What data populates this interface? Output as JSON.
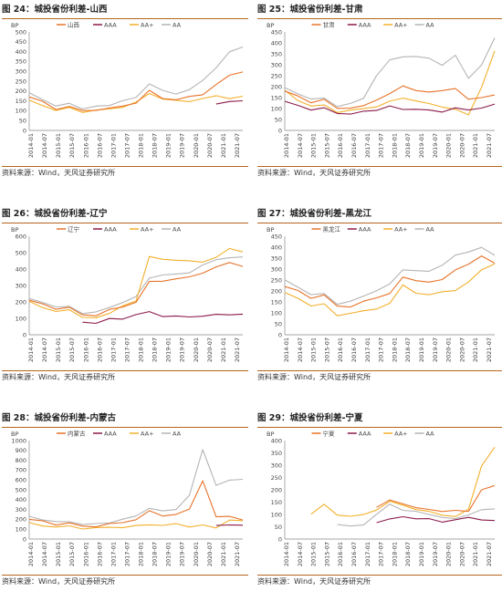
{
  "source_text": "资料来源：Wind，天风证券研究所",
  "x_tick_labels": [
    "2014-01",
    "2014-07",
    "2015-01",
    "2015-07",
    "2016-01",
    "2016-07",
    "2017-01",
    "2017-07",
    "2018-01",
    "2018-07",
    "2019-01",
    "2019-07",
    "2020-01",
    "2020-07",
    "2021-01",
    "2021-07"
  ],
  "colors": {
    "local": "#e8732a",
    "AAA": "#8b1a4a",
    "AA+": "#f2b02c",
    "AA": "#b4b4b4",
    "rule": "#b5651d"
  },
  "chart_data": [
    {
      "type": "line",
      "title": "图 24：城投省份利差-山西",
      "unit": "BP",
      "ylim": [
        0,
        500
      ],
      "yticks": [
        0,
        50,
        100,
        150,
        200,
        250,
        300,
        350,
        400,
        450,
        500
      ],
      "series_names": [
        "山西",
        "AAA",
        "AA+",
        "AA"
      ],
      "x": [
        "2014-01",
        "2014-07",
        "2015-01",
        "2015-07",
        "2016-01",
        "2016-07",
        "2017-01",
        "2017-07",
        "2018-01",
        "2018-07",
        "2019-01",
        "2019-07",
        "2020-01",
        "2020-07",
        "2021-01",
        "2021-07",
        "2021-10"
      ],
      "series": [
        {
          "values": [
            170,
            145,
            110,
            120,
            100,
            105,
            110,
            125,
            140,
            200,
            165,
            155,
            170,
            185,
            230,
            280,
            300
          ]
        },
        {
          "values": [
            null,
            null,
            null,
            null,
            null,
            null,
            null,
            null,
            null,
            null,
            null,
            null,
            null,
            null,
            130,
            150,
            150
          ]
        },
        {
          "values": [
            150,
            130,
            100,
            115,
            95,
            100,
            110,
            120,
            140,
            190,
            160,
            150,
            150,
            160,
            175,
            165,
            170
          ]
        },
        {
          "values": [
            190,
            160,
            120,
            140,
            110,
            120,
            130,
            150,
            165,
            240,
            200,
            185,
            210,
            250,
            320,
            400,
            420
          ]
        }
      ]
    },
    {
      "type": "line",
      "title": "图 25：城投省份利差-甘肃",
      "unit": "BP",
      "ylim": [
        0,
        450
      ],
      "yticks": [
        0,
        50,
        100,
        150,
        200,
        250,
        300,
        350,
        400,
        450
      ],
      "series_names": [
        "甘肃",
        "AAA",
        "AA+",
        "AA"
      ],
      "x": [
        "2014-01",
        "2014-07",
        "2015-01",
        "2015-07",
        "2016-01",
        "2016-07",
        "2017-01",
        "2017-07",
        "2018-01",
        "2018-07",
        "2019-01",
        "2019-07",
        "2020-01",
        "2020-07",
        "2021-01",
        "2021-07",
        "2021-10"
      ],
      "series": [
        {
          "values": [
            180,
            155,
            130,
            140,
            100,
            105,
            110,
            140,
            170,
            200,
            185,
            175,
            180,
            195,
            140,
            150,
            165
          ]
        },
        {
          "values": [
            130,
            115,
            95,
            100,
            80,
            75,
            85,
            95,
            110,
            95,
            100,
            90,
            85,
            105,
            90,
            105,
            120
          ]
        },
        {
          "values": [
            180,
            140,
            110,
            115,
            85,
            90,
            100,
            110,
            130,
            150,
            135,
            120,
            110,
            95,
            70,
            200,
            360
          ]
        },
        {
          "values": [
            195,
            170,
            140,
            150,
            110,
            120,
            150,
            250,
            320,
            340,
            335,
            330,
            300,
            340,
            240,
            300,
            420
          ]
        }
      ]
    },
    {
      "type": "line",
      "title": "图 26：城投省份利差-辽宁",
      "unit": "BP",
      "ylim": [
        0,
        600
      ],
      "yticks": [
        0,
        100,
        200,
        300,
        400,
        500,
        600
      ],
      "series_names": [
        "辽宁",
        "AAA",
        "AA+",
        "AA"
      ],
      "x": [
        "2014-01",
        "2014-07",
        "2015-01",
        "2015-07",
        "2016-01",
        "2016-07",
        "2017-01",
        "2017-07",
        "2018-01",
        "2018-07",
        "2019-01",
        "2019-07",
        "2020-01",
        "2020-07",
        "2021-01",
        "2021-07",
        "2021-10"
      ],
      "series": [
        {
          "values": [
            210,
            185,
            160,
            165,
            120,
            120,
            150,
            170,
            200,
            320,
            330,
            340,
            350,
            380,
            410,
            440,
            420
          ]
        },
        {
          "values": [
            null,
            null,
            null,
            null,
            80,
            70,
            95,
            100,
            120,
            140,
            115,
            110,
            110,
            115,
            120,
            125,
            125
          ]
        },
        {
          "values": [
            200,
            170,
            140,
            150,
            110,
            100,
            130,
            180,
            200,
            480,
            460,
            450,
            455,
            440,
            470,
            530,
            500
          ]
        },
        {
          "values": [
            220,
            200,
            165,
            175,
            130,
            135,
            170,
            195,
            230,
            350,
            360,
            370,
            380,
            420,
            460,
            470,
            470
          ]
        }
      ]
    },
    {
      "type": "line",
      "title": "图 27：城投省份利差-黑龙江",
      "unit": "BP",
      "ylim": [
        0,
        450
      ],
      "yticks": [
        0,
        50,
        100,
        150,
        200,
        250,
        300,
        350,
        400,
        450
      ],
      "series_names": [
        "黑龙江",
        "AAA",
        "AA+",
        "AA"
      ],
      "x": [
        "2014-01",
        "2014-07",
        "2015-01",
        "2015-07",
        "2016-01",
        "2016-07",
        "2017-01",
        "2017-07",
        "2018-01",
        "2018-07",
        "2019-01",
        "2019-07",
        "2020-01",
        "2020-07",
        "2021-01",
        "2021-07",
        "2021-10"
      ],
      "series": [
        {
          "values": [
            220,
            200,
            170,
            180,
            130,
            130,
            150,
            170,
            190,
            260,
            250,
            240,
            250,
            300,
            320,
            360,
            330
          ]
        },
        {
          "values": [
            null,
            null,
            null,
            null,
            null,
            null,
            null,
            null,
            null,
            null,
            null,
            null,
            null,
            null,
            null,
            null,
            null
          ]
        },
        {
          "values": [
            190,
            170,
            130,
            140,
            90,
            95,
            110,
            120,
            140,
            230,
            190,
            180,
            200,
            200,
            240,
            300,
            320
          ]
        },
        {
          "values": [
            250,
            220,
            180,
            190,
            140,
            150,
            180,
            200,
            230,
            300,
            290,
            290,
            320,
            360,
            380,
            400,
            360
          ]
        }
      ]
    },
    {
      "type": "line",
      "title": "图 28：城投省份利差-内蒙古",
      "unit": "BP",
      "ylim": [
        0,
        1000
      ],
      "yticks": [
        0,
        100,
        200,
        300,
        400,
        500,
        600,
        700,
        800,
        900,
        1000
      ],
      "series_names": [
        "内蒙古",
        "AAA",
        "AA+",
        "AA"
      ],
      "x": [
        "2014-01",
        "2014-07",
        "2015-01",
        "2015-07",
        "2016-01",
        "2016-07",
        "2017-01",
        "2017-07",
        "2018-01",
        "2018-07",
        "2019-01",
        "2019-07",
        "2020-01",
        "2020-07",
        "2021-01",
        "2021-07",
        "2021-10"
      ],
      "series": [
        {
          "values": [
            200,
            180,
            150,
            160,
            130,
            130,
            150,
            170,
            200,
            280,
            240,
            250,
            300,
            600,
            220,
            230,
            200
          ]
        },
        {
          "values": [
            null,
            null,
            null,
            null,
            null,
            null,
            null,
            null,
            null,
            null,
            null,
            null,
            null,
            null,
            130,
            150,
            140
          ]
        },
        {
          "values": [
            160,
            140,
            120,
            130,
            110,
            110,
            120,
            120,
            130,
            150,
            140,
            150,
            130,
            140,
            110,
            200,
            180
          ]
        },
        {
          "values": [
            230,
            200,
            170,
            180,
            150,
            150,
            170,
            200,
            230,
            320,
            280,
            300,
            450,
            900,
            550,
            600,
            600
          ]
        }
      ]
    },
    {
      "type": "line",
      "title": "图 29：城投省份利差-宁夏",
      "unit": "BP",
      "ylim": [
        0,
        400
      ],
      "yticks": [
        0,
        50,
        100,
        150,
        200,
        250,
        300,
        350,
        400
      ],
      "series_names": [
        "宁夏",
        "AAA",
        "AA+",
        "AA"
      ],
      "x": [
        "2014-01",
        "2014-07",
        "2015-01",
        "2015-07",
        "2016-01",
        "2016-07",
        "2017-01",
        "2017-07",
        "2018-01",
        "2018-07",
        "2019-01",
        "2019-07",
        "2020-01",
        "2020-07",
        "2021-01",
        "2021-07",
        "2021-10"
      ],
      "series": [
        {
          "values": [
            null,
            null,
            null,
            null,
            null,
            null,
            null,
            130,
            160,
            140,
            130,
            120,
            110,
            120,
            110,
            200,
            220
          ]
        },
        {
          "values": [
            null,
            null,
            null,
            null,
            null,
            null,
            null,
            70,
            80,
            90,
            85,
            80,
            70,
            80,
            85,
            80,
            75
          ]
        },
        {
          "values": [
            null,
            null,
            100,
            140,
            100,
            90,
            100,
            120,
            150,
            140,
            120,
            110,
            100,
            90,
            120,
            300,
            370
          ]
        },
        {
          "values": [
            null,
            null,
            null,
            null,
            60,
            50,
            60,
            100,
            140,
            120,
            110,
            100,
            90,
            80,
            100,
            120,
            120
          ]
        }
      ]
    }
  ]
}
